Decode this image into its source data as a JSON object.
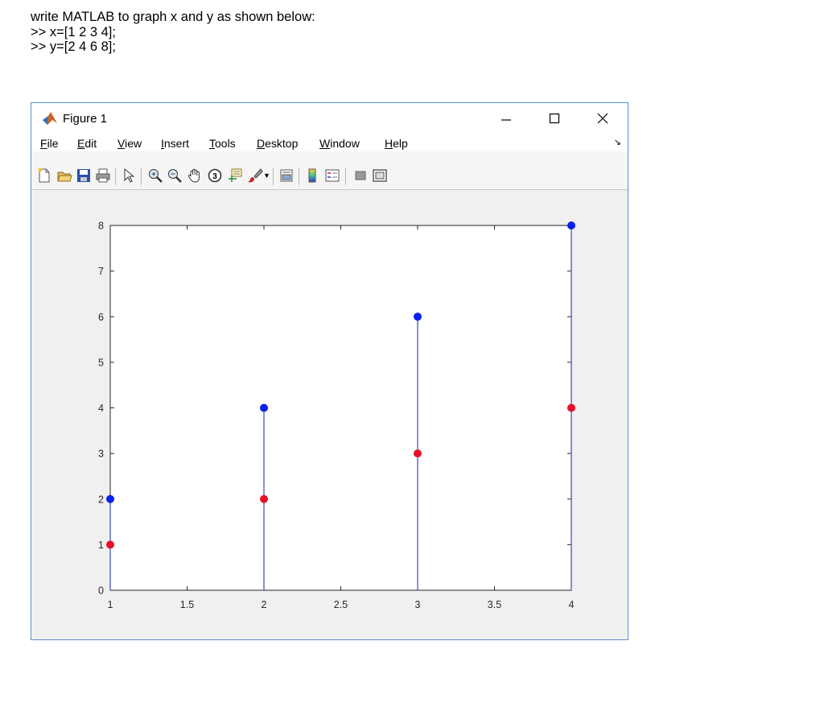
{
  "question": {
    "line1": "write MATLAB to graph x and y as shown below:",
    "line2": ">> x=[1 2 3 4];",
    "line3": ">> y=[2 4 6 8];"
  },
  "window": {
    "title": "Figure 1",
    "icon": "matlab-logo-icon",
    "controls": [
      "minimize-icon",
      "maximize-icon",
      "close-icon"
    ]
  },
  "menu": {
    "file": {
      "accel": "F",
      "rest": "ile"
    },
    "edit": {
      "accel": "E",
      "rest": "dit"
    },
    "view": {
      "accel": "V",
      "rest": "iew"
    },
    "insert": {
      "accel": "I",
      "rest": "nsert"
    },
    "tools": {
      "accel": "T",
      "rest": "ools"
    },
    "desktop": {
      "accel": "D",
      "rest": "esktop"
    },
    "window": {
      "accel": "W",
      "rest": "indow"
    },
    "help": {
      "accel": "H",
      "rest": "elp"
    },
    "dock_arrow": "↘"
  },
  "toolbar_icons": [
    "new-figure-icon",
    "open-file-icon",
    "save-icon",
    "print-icon",
    "pointer-icon",
    "zoom-in-icon",
    "zoom-out-icon",
    "pan-hand-icon",
    "rotate-3d-icon",
    "data-cursor-icon",
    "brush-icon",
    "link-plot-icon",
    "colorbar-icon",
    "legend-icon",
    "hide-plot-tools-icon",
    "show-plot-tools-icon"
  ],
  "chart_data": {
    "type": "stem",
    "xlim": [
      1,
      4
    ],
    "ylim": [
      0,
      8
    ],
    "x_ticks": [
      "1",
      "1.5",
      "2",
      "2.5",
      "3",
      "3.5",
      "4"
    ],
    "y_ticks": [
      "0",
      "1",
      "2",
      "3",
      "4",
      "5",
      "6",
      "7",
      "8"
    ],
    "series": [
      {
        "x": [
          1,
          2,
          3,
          4
        ],
        "values": [
          2,
          4,
          6,
          8
        ],
        "color": "#0a1ff0",
        "stem": true
      },
      {
        "x": [
          1,
          2,
          3,
          4
        ],
        "values": [
          1,
          2,
          3,
          4
        ],
        "color": "#e8102a",
        "stem": false
      }
    ],
    "stem_color": "#3a4bc0",
    "grid": false
  }
}
